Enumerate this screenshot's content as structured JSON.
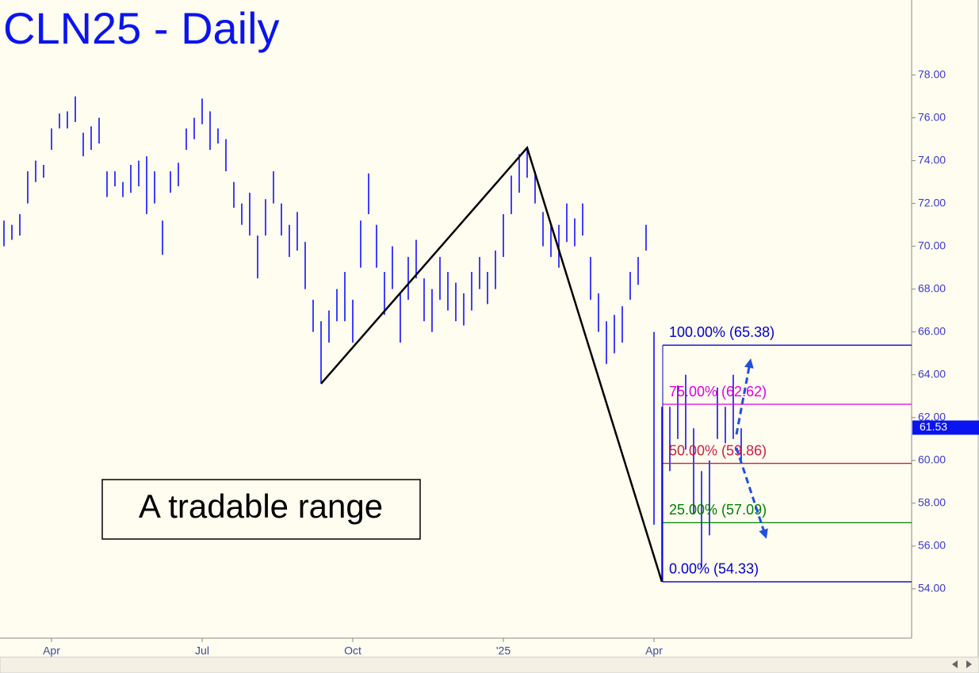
{
  "chart_data": {
    "type": "ohlc",
    "title": "CLN25 - Daily",
    "annotation": "A tradable range",
    "categories": [
      null,
      null,
      null,
      null,
      null,
      null,
      "Apr",
      null,
      null,
      null,
      null,
      null,
      null,
      null,
      null,
      null,
      null,
      null,
      null,
      null,
      null,
      null,
      null,
      null,
      null,
      "Jul",
      null,
      null,
      null,
      null,
      null,
      null,
      null,
      null,
      null,
      null,
      null,
      null,
      null,
      null,
      null,
      null,
      null,
      null,
      "Oct",
      null,
      null,
      null,
      null,
      null,
      null,
      null,
      null,
      null,
      null,
      null,
      null,
      null,
      null,
      null,
      null,
      null,
      null,
      "'25",
      null,
      null,
      null,
      null,
      null,
      null,
      null,
      null,
      null,
      null,
      null,
      null,
      null,
      null,
      null,
      null,
      null,
      null,
      "Apr",
      null,
      null,
      null,
      null,
      null,
      null,
      null,
      null,
      null,
      null,
      null
    ],
    "high": [
      71.2,
      71.0,
      71.5,
      73.5,
      74.0,
      73.8,
      75.5,
      76.2,
      76.3,
      77.0,
      75.3,
      75.6,
      76.0,
      73.5,
      73.5,
      73.0,
      73.8,
      74.0,
      74.2,
      73.5,
      71.2,
      73.5,
      73.9,
      75.5,
      76.0,
      76.9,
      76.3,
      75.5,
      75.0,
      73.0,
      72.0,
      72.5,
      70.5,
      72.2,
      73.5,
      72.0,
      71.0,
      71.6,
      70.2,
      67.5,
      66.5,
      67.0,
      68.0,
      68.8,
      67.5,
      71.2,
      73.4,
      71.0,
      68.8,
      70.0,
      67.8,
      69.5,
      70.3,
      68.5,
      68.0,
      69.5,
      68.8,
      68.3,
      67.8,
      68.8,
      69.5,
      68.8,
      69.8,
      71.5,
      73.3,
      74.3,
      74.6,
      73.5,
      71.6,
      71.0,
      71.0,
      72.0,
      71.3,
      72.0,
      69.5,
      67.8,
      66.5,
      66.8,
      67.2,
      68.8,
      69.5,
      71.0,
      66.0,
      62.5,
      62.5,
      63.5,
      64.0,
      61.5,
      59.5,
      60.0,
      63.4,
      62.5,
      64.0,
      61.5
    ],
    "low": [
      70.0,
      70.3,
      70.5,
      72.0,
      73.0,
      73.2,
      74.5,
      75.5,
      75.5,
      75.8,
      74.2,
      74.5,
      74.8,
      72.3,
      72.8,
      72.3,
      72.5,
      72.8,
      71.5,
      72.0,
      69.6,
      72.5,
      72.8,
      74.5,
      75.0,
      75.7,
      74.5,
      74.8,
      73.5,
      71.8,
      71.0,
      70.5,
      68.5,
      70.5,
      72.0,
      70.5,
      69.5,
      69.8,
      68.0,
      66.0,
      63.58,
      65.5,
      66.5,
      66.5,
      65.5,
      69.0,
      71.5,
      69.0,
      66.8,
      68.0,
      65.5,
      67.5,
      68.5,
      66.5,
      66.0,
      67.5,
      67.0,
      66.5,
      66.3,
      67.0,
      68.0,
      67.3,
      68.0,
      69.5,
      71.5,
      72.5,
      73.2,
      72.0,
      70.0,
      69.5,
      69.0,
      70.2,
      70.0,
      70.5,
      67.5,
      66.0,
      64.5,
      65.0,
      65.5,
      67.5,
      68.2,
      69.8,
      57.0,
      54.33,
      59.5,
      61.0,
      60.5,
      57.5,
      55.0,
      56.5,
      61.0,
      60.8,
      61.0,
      60.0
    ],
    "color": "#0000ff",
    "swing_bars": [
      40,
      66,
      83
    ],
    "fib_levels": [
      {
        "label": "100.00% (65.38)",
        "value": 65.38,
        "color": "#0000cc"
      },
      {
        "label": "75.00% (62.62)",
        "value": 62.62,
        "color": "#e000e0"
      },
      {
        "label": "50.00% (59.86)",
        "value": 59.86,
        "color": "#cc2040"
      },
      {
        "label": "25.00% (57.09)",
        "value": 57.09,
        "color": "#008000"
      },
      {
        "label": "0.00% (54.33)",
        "value": 54.33,
        "color": "#0000cc"
      }
    ],
    "last_price": {
      "value": 61.53,
      "label": "61.53"
    },
    "ylim": [
      51.7,
      81.5
    ],
    "yticks": [
      {
        "value": 54,
        "label": "54.00"
      },
      {
        "value": 56,
        "label": "56.00"
      },
      {
        "value": 58,
        "label": "58.00"
      },
      {
        "value": 60,
        "label": "60.00"
      },
      {
        "value": 62,
        "label": "62.00"
      },
      {
        "value": 64,
        "label": "64.00"
      },
      {
        "value": 66,
        "label": "66.00"
      },
      {
        "value": 68,
        "label": "68.00"
      },
      {
        "value": 70,
        "label": "70.00"
      },
      {
        "value": 72,
        "label": "72.00"
      },
      {
        "value": 74,
        "label": "74.00"
      },
      {
        "value": 76,
        "label": "76.00"
      },
      {
        "value": 78,
        "label": "78.00"
      }
    ]
  }
}
